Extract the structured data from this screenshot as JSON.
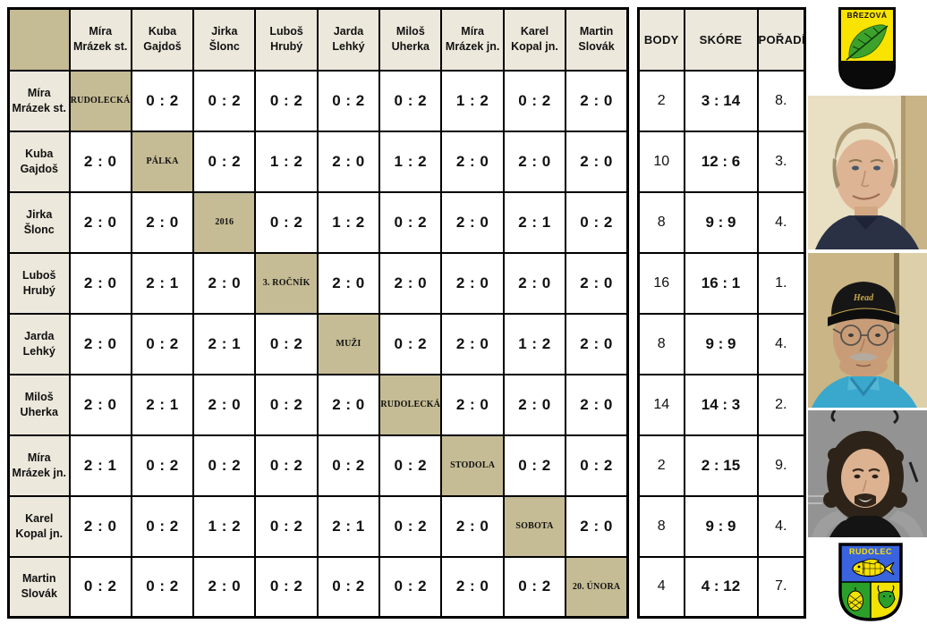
{
  "table": {
    "players": [
      {
        "first": "Míra",
        "last": "Mrázek st."
      },
      {
        "first": "Kuba",
        "last": "Gajdoš"
      },
      {
        "first": "Jirka",
        "last": "Šlonc"
      },
      {
        "first": "Luboš",
        "last": "Hrubý"
      },
      {
        "first": "Jarda",
        "last": "Lehký"
      },
      {
        "first": "Miloš",
        "last": "Uherka"
      },
      {
        "first": "Míra",
        "last": "Mrázek jn."
      },
      {
        "first": "Karel",
        "last": "Kopal jn."
      },
      {
        "first": "Martin",
        "last": "Slovák"
      }
    ],
    "diagonal_labels": [
      "RUDOLECKÁ",
      "PÁLKA",
      "2016",
      "3. ROČNÍK",
      "MUŽI",
      "RUDOLECKÁ",
      "STODOLA",
      "SOBOTA",
      "20. ÚNORA"
    ],
    "summary_headers": [
      "BODY",
      "SKÓRE",
      "POŘADÍ"
    ],
    "rows": [
      {
        "results": [
          null,
          "0 : 2",
          "0 : 2",
          "0 : 2",
          "0 : 2",
          "0 : 2",
          "1 : 2",
          "0 : 2",
          "2 : 0"
        ],
        "body": "2",
        "score": "3 : 14",
        "rank": "8."
      },
      {
        "results": [
          "2 : 0",
          null,
          "0 : 2",
          "1 : 2",
          "2 : 0",
          "1 : 2",
          "2 : 0",
          "2 : 0",
          "2 : 0"
        ],
        "body": "10",
        "score": "12 : 6",
        "rank": "3."
      },
      {
        "results": [
          "2 : 0",
          "2 : 0",
          null,
          "0 : 2",
          "1 : 2",
          "0 : 2",
          "2 : 0",
          "2 : 1",
          "0 : 2"
        ],
        "body": "8",
        "score": "9 : 9",
        "rank": "4."
      },
      {
        "results": [
          "2 : 0",
          "2 : 1",
          "2 : 0",
          null,
          "2 : 0",
          "2 : 0",
          "2 : 0",
          "2 : 0",
          "2 : 0"
        ],
        "body": "16",
        "score": "16 : 1",
        "rank": "1."
      },
      {
        "results": [
          "2 : 0",
          "0 : 2",
          "2 : 1",
          "0 : 2",
          null,
          "0 : 2",
          "2 : 0",
          "1 : 2",
          "2 : 0"
        ],
        "body": "8",
        "score": "9 : 9",
        "rank": "4."
      },
      {
        "results": [
          "2 : 0",
          "2 : 1",
          "2 : 0",
          "0 : 2",
          "2 : 0",
          null,
          "2 : 0",
          "2 : 0",
          "2 : 0"
        ],
        "body": "14",
        "score": "14 : 3",
        "rank": "2."
      },
      {
        "results": [
          "2 : 1",
          "0 : 2",
          "0 : 2",
          "0 : 2",
          "0 : 2",
          "0 : 2",
          null,
          "0 : 2",
          "0 : 2"
        ],
        "body": "2",
        "score": "2 : 15",
        "rank": "9."
      },
      {
        "results": [
          "2 : 0",
          "0 : 2",
          "1 : 2",
          "0 : 2",
          "2 : 1",
          "0 : 2",
          "2 : 0",
          null,
          "2 : 0"
        ],
        "body": "8",
        "score": "9 : 9",
        "rank": "4."
      },
      {
        "results": [
          "0 : 2",
          "0 : 2",
          "2 : 0",
          "0 : 2",
          "0 : 2",
          "0 : 2",
          "2 : 0",
          "0 : 2",
          null
        ],
        "body": "4",
        "score": "4 : 12",
        "rank": "7."
      }
    ]
  },
  "emblems": {
    "brezova": {
      "label": "BŘEZOVÁ",
      "shield_color": "#F9E300",
      "leaf_color": "#3DA22C",
      "base_color": "#0A0A0A"
    },
    "rudolec": {
      "label": "RUDOLEC",
      "top_color": "#3A63DE",
      "left_color": "#2AA02A",
      "right_color": "#F2E300",
      "charge_color": "#F9E300"
    }
  },
  "photos": [
    {
      "description": "older man, short gray-blond hair, dark navy shirt, beige wall background"
    },
    {
      "description": "older man, black baseball cap, glasses, gray mustache, light blue polo shirt",
      "cap_label": "Head"
    },
    {
      "description": "young man, long dark curly hair, goatee, gray hoodie over black shirt, gray wall background"
    }
  ],
  "colors": {
    "header_bg": "#EDE8DC",
    "diagonal_bg": "#C5BB94",
    "cell_bg": "#FFFFFF",
    "border": "#000000"
  }
}
